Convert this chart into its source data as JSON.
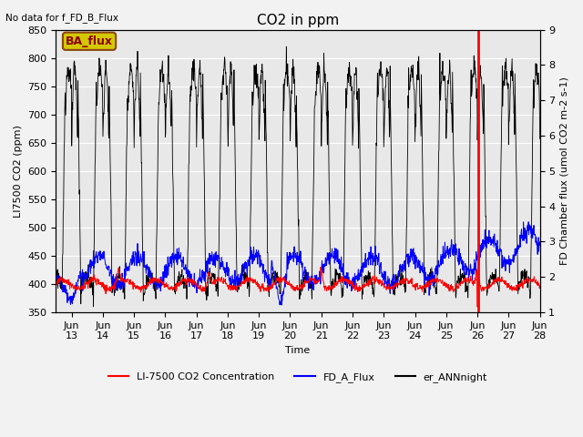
{
  "title": "CO2 in ppm",
  "top_left_text": "No data for f_FD_B_Flux",
  "legend_box_label": "BA_flux",
  "legend_box_facecolor": "#d4c800",
  "legend_box_edgecolor": "#8B4513",
  "ylabel_left": "LI7500 CO2 (ppm)",
  "ylabel_right": "FD Chamber flux (umol CO2 m-2 s-1)",
  "xlabel": "Time",
  "ylim_left": [
    350,
    850
  ],
  "ylim_right": [
    1.0,
    9.0
  ],
  "xlim_start_day": 12.5,
  "xlim_end_day": 28.0,
  "xtick_days": [
    13,
    14,
    15,
    16,
    17,
    18,
    19,
    20,
    21,
    22,
    23,
    24,
    25,
    26,
    27,
    28
  ],
  "xtick_labels": [
    "Jun 13",
    "Jun 14",
    "Jun 15",
    "Jun 16",
    "Jun 17",
    "Jun 18",
    "Jun 19",
    "Jun 20",
    "Jun 21",
    "Jun 22",
    "Jun 23",
    "Jun 24",
    "Jun 25",
    "Jun 26",
    "Jun 27",
    "Jun 28"
  ],
  "red_vline_day": 26.02,
  "line_red_label": "LI-7500 CO2 Concentration",
  "line_blue_label": "FD_A_Flux",
  "line_black_label": "er_ANNnight",
  "plot_bg_color": "#e8e8e8",
  "fig_bg_color": "#f2f2f2",
  "grid_color": "#ffffff",
  "title_fontsize": 11,
  "label_fontsize": 8,
  "tick_fontsize": 8
}
